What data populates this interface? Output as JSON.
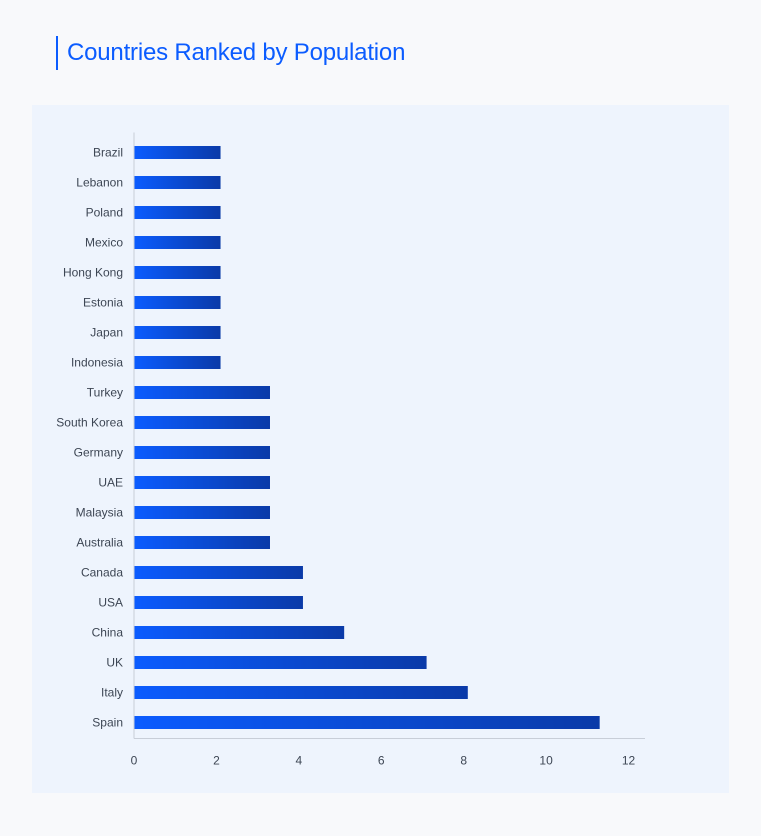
{
  "chart_data": {
    "type": "bar",
    "orientation": "horizontal",
    "title": "Countries Ranked by Population",
    "xlabel": "",
    "ylabel": "",
    "categories": [
      "Brazil",
      "Lebanon",
      "Poland",
      "Mexico",
      "Hong Kong",
      "Estonia",
      "Japan",
      "Indonesia",
      "Turkey",
      "South Korea",
      "Germany",
      "UAE",
      "Malaysia",
      "Australia",
      "Canada",
      "USA",
      "China",
      "UK",
      "Italy",
      "Spain"
    ],
    "values": [
      2.1,
      2.1,
      2.1,
      2.1,
      2.1,
      2.1,
      2.1,
      2.1,
      3.3,
      3.3,
      3.3,
      3.3,
      3.3,
      3.3,
      4.1,
      4.1,
      5.1,
      7.1,
      8.1,
      11.3
    ],
    "xlim": [
      0,
      12.4
    ],
    "xticks": [
      0,
      2,
      4,
      6,
      8,
      10,
      12
    ],
    "grid": false,
    "legend": "none",
    "colors": {
      "bar_start": "#0b5cff",
      "bar_end": "#0a3aa8",
      "title": "#0b5cff",
      "axis": "#c8ced8"
    }
  }
}
